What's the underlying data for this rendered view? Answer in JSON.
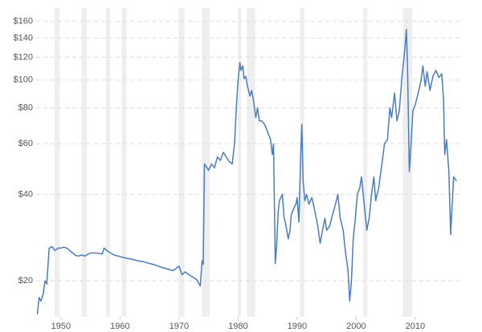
{
  "chart_data": {
    "type": "line",
    "log_scale": true,
    "grid": true,
    "color": "#4a7dbf",
    "shade_color": "#eeeeee",
    "shaded_periods": [
      [
        1948.9,
        1949.8
      ],
      [
        1953.5,
        1954.4
      ],
      [
        1957.6,
        1958.3
      ],
      [
        1960.3,
        1961.1
      ],
      [
        1969.9,
        1970.9
      ],
      [
        1973.9,
        1975.2
      ],
      [
        1980.0,
        1980.5
      ],
      [
        1981.5,
        1982.9
      ],
      [
        1990.5,
        1991.2
      ],
      [
        2001.2,
        2001.9
      ],
      [
        2007.9,
        2009.5
      ]
    ],
    "xlim": [
      1945.8,
      2017.5
    ],
    "xticks": [
      1950,
      1960,
      1970,
      1980,
      1990,
      2000,
      2010
    ],
    "ylim": [
      15,
      178
    ],
    "yticks": [
      {
        "value": 20,
        "label": "$20"
      },
      {
        "value": 40,
        "label": "$40"
      },
      {
        "value": 60,
        "label": "$60"
      },
      {
        "value": 80,
        "label": "$80"
      },
      {
        "value": 100,
        "label": "$100"
      },
      {
        "value": 120,
        "label": "$120"
      },
      {
        "value": 140,
        "label": "$140"
      },
      {
        "value": 160,
        "label": "$160"
      }
    ],
    "x": [
      1946.0,
      1946.3,
      1946.6,
      1947.0,
      1947.3,
      1947.6,
      1948.0,
      1948.5,
      1949.0,
      1949.5,
      1950.0,
      1950.5,
      1951.0,
      1952.0,
      1952.5,
      1953.0,
      1953.5,
      1954.0,
      1955.0,
      1956.0,
      1957.0,
      1957.3,
      1958.0,
      1959.0,
      1960.0,
      1961.0,
      1962.0,
      1963.0,
      1964.0,
      1965.0,
      1966.0,
      1967.0,
      1968.0,
      1969.0,
      1970.0,
      1970.5,
      1971.0,
      1972.0,
      1973.0,
      1973.6,
      1973.9,
      1974.1,
      1974.3,
      1974.6,
      1975.0,
      1975.5,
      1976.0,
      1976.5,
      1977.0,
      1977.5,
      1978.0,
      1978.5,
      1979.0,
      1979.4,
      1979.7,
      1980.0,
      1980.3,
      1980.5,
      1980.8,
      1981.0,
      1981.3,
      1981.6,
      1982.0,
      1982.3,
      1982.6,
      1983.0,
      1983.3,
      1983.6,
      1984.0,
      1984.5,
      1985.0,
      1985.5,
      1985.8,
      1986.0,
      1986.3,
      1986.5,
      1986.8,
      1987.0,
      1987.5,
      1987.8,
      1988.0,
      1988.5,
      1988.8,
      1989.0,
      1989.5,
      1989.8,
      1990.0,
      1990.3,
      1990.6,
      1990.8,
      1991.0,
      1991.3,
      1991.6,
      1992.0,
      1992.5,
      1993.0,
      1993.5,
      1993.9,
      1994.3,
      1994.7,
      1995.0,
      1995.5,
      1996.0,
      1996.5,
      1996.9,
      1997.3,
      1997.8,
      1998.2,
      1998.6,
      1998.9,
      1999.2,
      1999.5,
      1999.8,
      2000.2,
      2000.6,
      2000.9,
      2001.3,
      2001.8,
      2002.2,
      2002.6,
      2003.0,
      2003.3,
      2003.8,
      2004.3,
      2004.8,
      2005.3,
      2005.7,
      2006.0,
      2006.5,
      2006.9,
      2007.3,
      2007.8,
      2008.2,
      2008.5,
      2008.7,
      2009.0,
      2009.3,
      2009.6,
      2010.0,
      2010.5,
      2011.0,
      2011.3,
      2011.7,
      2012.0,
      2012.5,
      2013.0,
      2013.5,
      2014.0,
      2014.5,
      2014.8,
      2015.0,
      2015.3,
      2015.7,
      2016.0,
      2016.5,
      2017.0
    ],
    "values": [
      15.3,
      17.5,
      17,
      18,
      20,
      19.5,
      26,
      26.3,
      25.5,
      26,
      26,
      26.2,
      26,
      25,
      24.5,
      24.4,
      24.6,
      24.4,
      25,
      25,
      24.8,
      26,
      25.3,
      24.6,
      24.3,
      24,
      23.8,
      23.5,
      23.3,
      23,
      22.7,
      22.3,
      22,
      21.7,
      22.5,
      21,
      21.5,
      20.8,
      20.2,
      19.2,
      23.5,
      22.8,
      51,
      50,
      48.5,
      51,
      49.5,
      54,
      52.5,
      56,
      54,
      52,
      51,
      60,
      80,
      100,
      115,
      108,
      112,
      101,
      103,
      95,
      88,
      92,
      85,
      74,
      80,
      72,
      72,
      70,
      66,
      62,
      55,
      60,
      23,
      26,
      35,
      38,
      40,
      33,
      32,
      28,
      30,
      34,
      36,
      37,
      39,
      32,
      55,
      70,
      45,
      38,
      40,
      37,
      39,
      35,
      31,
      27,
      30,
      33,
      30,
      31,
      34,
      37,
      40,
      33,
      30,
      25,
      22,
      17,
      20,
      28,
      32,
      40,
      42,
      46,
      38,
      30,
      33,
      40,
      46,
      38,
      42,
      50,
      60,
      62,
      80,
      74,
      90,
      72,
      78,
      105,
      125,
      150,
      110,
      48,
      60,
      78,
      82,
      90,
      100,
      112,
      95,
      107,
      92,
      103,
      108,
      102,
      105,
      85,
      55,
      62,
      48,
      29,
      46,
      44.5
    ]
  }
}
